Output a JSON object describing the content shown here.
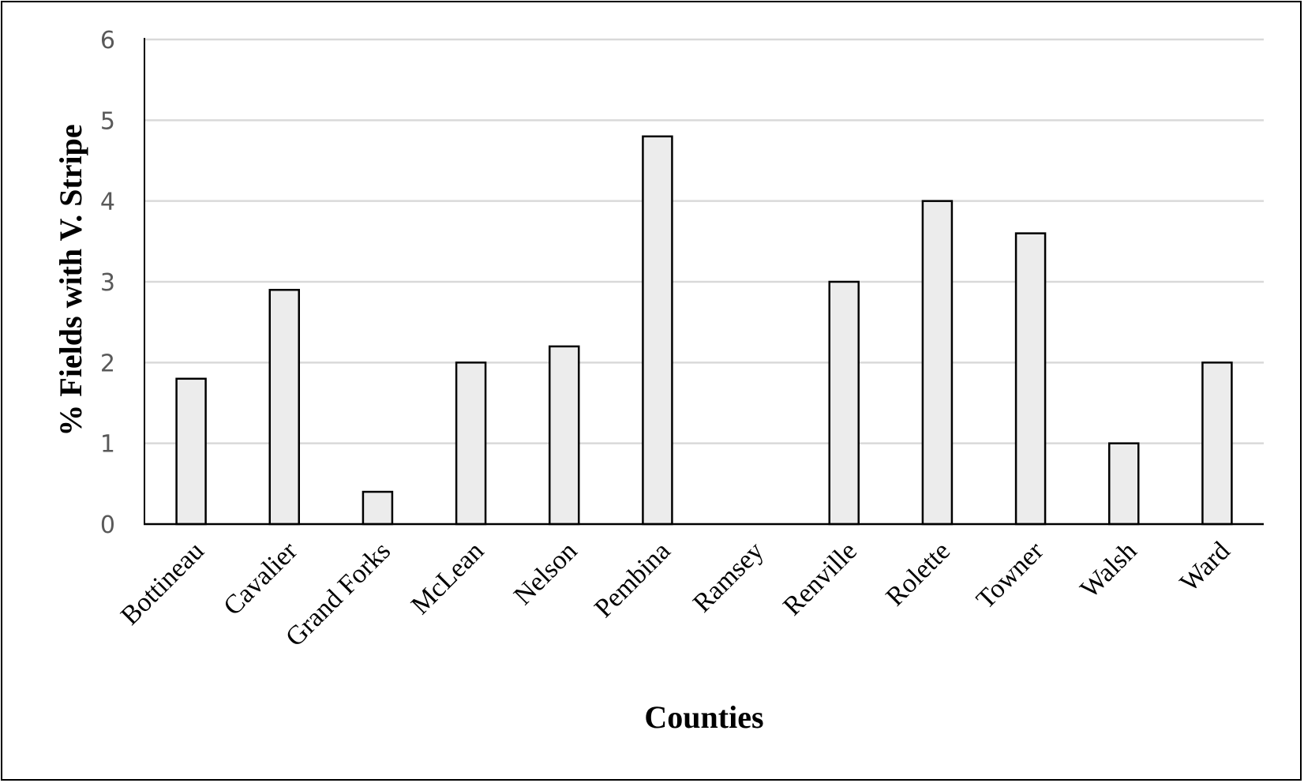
{
  "chart_data": {
    "type": "bar",
    "title": "",
    "xlabel": "Counties",
    "ylabel": "% Fields with V. Stripe",
    "ylim": [
      0,
      6
    ],
    "yticks": [
      0,
      1,
      2,
      3,
      4,
      5,
      6
    ],
    "grid": true,
    "legend": null,
    "categories": [
      "Bottineau",
      "Cavalier",
      "Grand Forks",
      "McLean",
      "Nelson",
      "Pembina",
      "Ramsey",
      "Renville",
      "Rolette",
      "Towner",
      "Walsh",
      "Ward"
    ],
    "values": [
      1.8,
      2.9,
      0.4,
      2.0,
      2.2,
      4.8,
      0,
      3.0,
      4.0,
      3.6,
      1.0,
      2.0
    ],
    "colors": {
      "bar_fill": "#ececec",
      "bar_stroke": "#000000",
      "grid": "#d9d9d9",
      "tick_text": "#595959"
    }
  }
}
